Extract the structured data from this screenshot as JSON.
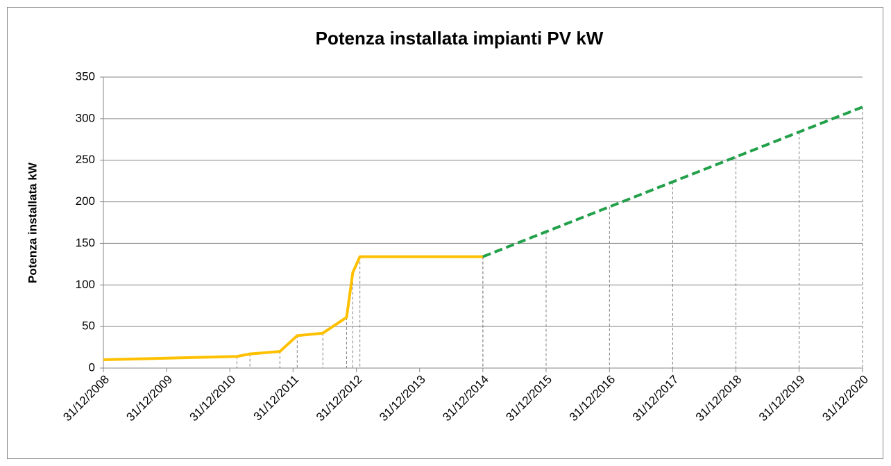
{
  "chart_data": {
    "type": "line",
    "title": "Potenza installata impianti PV kW",
    "y_label": "Potenza installata kW",
    "series": [
      {
        "color": "#ffc000",
        "dashed": false,
        "x": [
          "31/12/2008",
          "10/02/2011",
          "26/04/2011",
          "16/10/2011",
          "24/01/2012",
          "20/06/2012",
          "04/11/2012",
          "10/12/2012",
          "20/01/2013",
          "31/12/2014"
        ],
        "values": [
          10,
          14,
          17,
          20,
          39,
          42,
          61,
          115,
          134,
          134
        ]
      },
      {
        "color": "#22a04a",
        "dashed": true,
        "x": [
          "31/12/2014",
          "31/12/2015",
          "31/12/2016",
          "31/12/2017",
          "31/12/2018",
          "31/12/2019",
          "31/12/2020"
        ],
        "values": [
          134,
          164,
          194,
          224,
          254,
          284,
          314
        ]
      }
    ],
    "xlim": [
      "31/12/2008",
      "31/12/2020"
    ],
    "xticks": [
      "31/12/2008",
      "31/12/2009",
      "31/12/2010",
      "31/12/2011",
      "31/12/2012",
      "31/12/2013",
      "31/12/2014",
      "31/12/2015",
      "31/12/2016",
      "31/12/2017",
      "31/12/2018",
      "31/12/2019",
      "31/12/2020"
    ],
    "ylim": [
      0,
      350
    ],
    "yticks": [
      0,
      50,
      100,
      150,
      200,
      250,
      300,
      350
    ],
    "grid": true
  }
}
